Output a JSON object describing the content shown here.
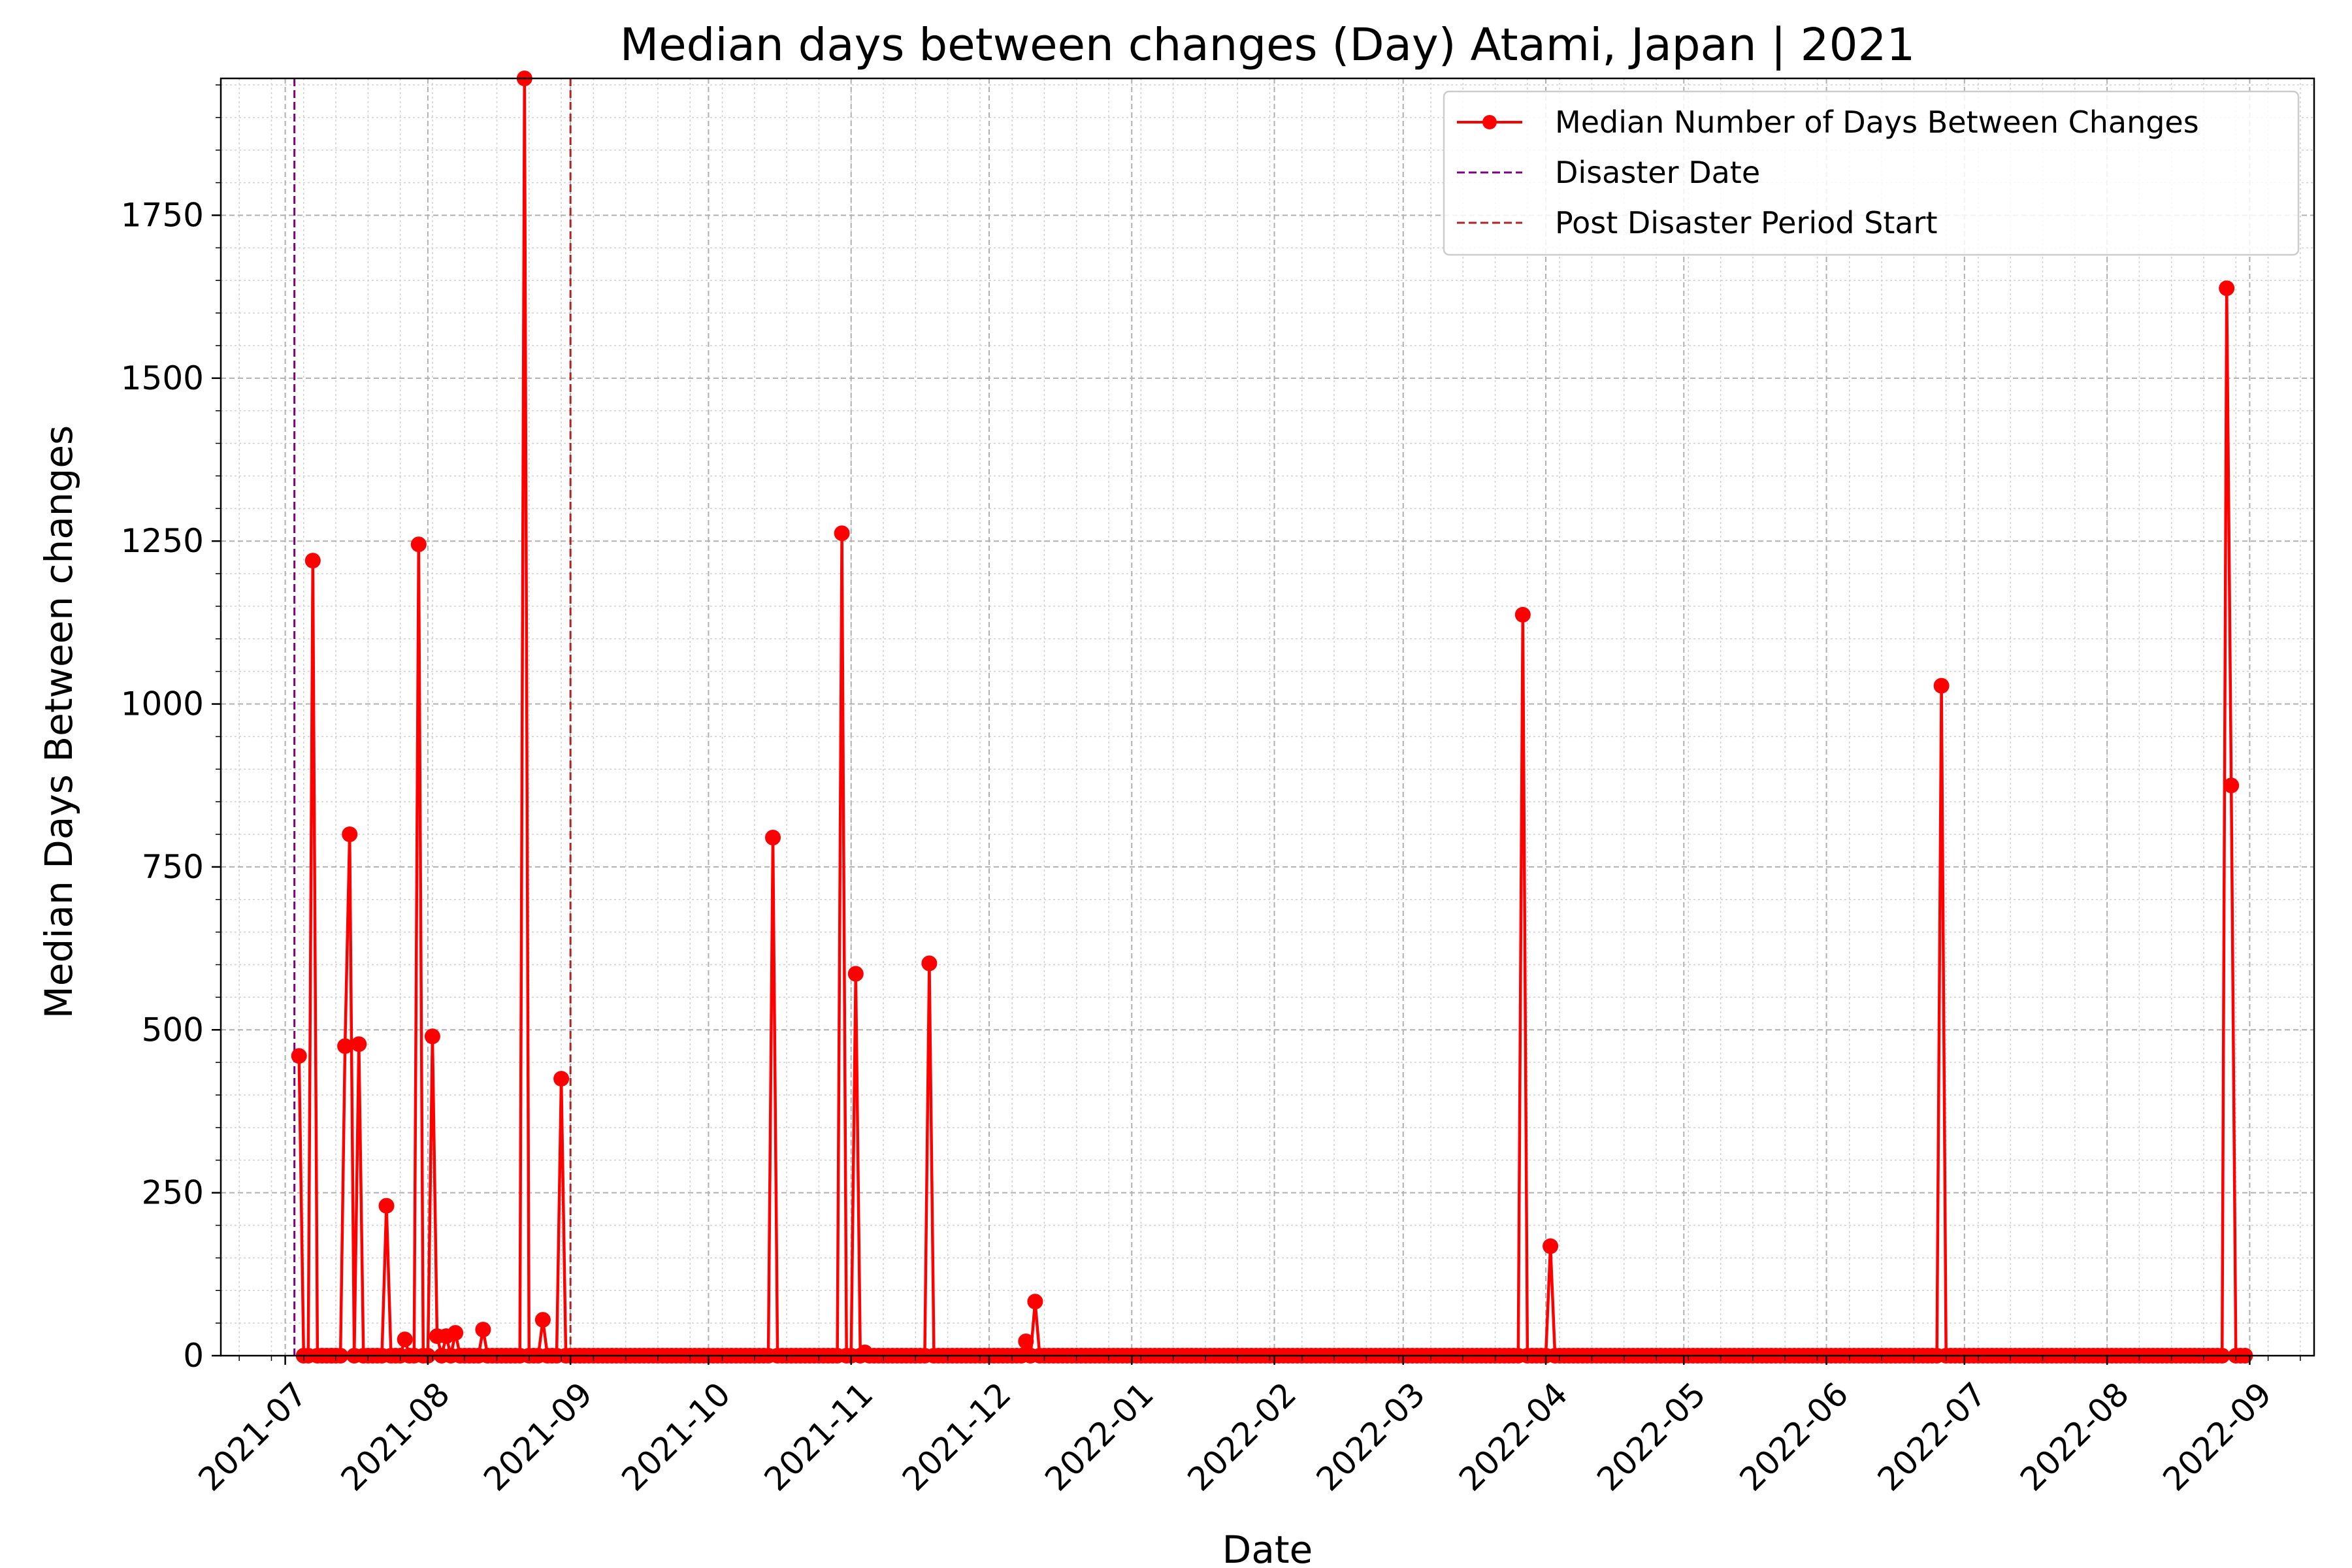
{
  "chart_data": {
    "type": "line",
    "title": "Median days between changes (Day) Atami, Japan | 2021",
    "xlabel": "Date",
    "ylabel": "Median Days Between changes",
    "xlim": [
      "2021-06-17",
      "2022-09-15"
    ],
    "ylim": [
      0,
      1960
    ],
    "y_ticks": [
      0,
      250,
      500,
      750,
      1000,
      1250,
      1500,
      1750
    ],
    "x_ticks": [
      "2021-07",
      "2021-08",
      "2021-09",
      "2021-10",
      "2021-11",
      "2021-12",
      "2022-01",
      "2022-02",
      "2022-03",
      "2022-04",
      "2022-05",
      "2022-06",
      "2022-07",
      "2022-08",
      "2022-09"
    ],
    "grid": true,
    "legend_position": "top-right",
    "colors": {
      "series": "#ff0000",
      "disaster": "#800080",
      "post": "#b22222"
    },
    "vlines": [
      {
        "name": "Disaster Date",
        "date": "2021-07-03",
        "color": "#800080"
      },
      {
        "name": "Post Disaster Period Start",
        "date": "2021-09-01",
        "color": "#b22222"
      }
    ],
    "series": [
      {
        "name": "Median Number of Days Between Changes",
        "color": "#ff0000",
        "points": [
          [
            "2021-07-04",
            460
          ],
          [
            "2021-07-05",
            0
          ],
          [
            "2021-07-06",
            0
          ],
          [
            "2021-07-07",
            1220
          ],
          [
            "2021-07-08",
            0
          ],
          [
            "2021-07-09",
            0
          ],
          [
            "2021-07-10",
            0
          ],
          [
            "2021-07-11",
            0
          ],
          [
            "2021-07-12",
            0
          ],
          [
            "2021-07-13",
            0
          ],
          [
            "2021-07-14",
            475
          ],
          [
            "2021-07-15",
            800
          ],
          [
            "2021-07-16",
            0
          ],
          [
            "2021-07-17",
            478
          ],
          [
            "2021-07-18",
            0
          ],
          [
            "2021-07-19",
            0
          ],
          [
            "2021-07-20",
            0
          ],
          [
            "2021-07-21",
            0
          ],
          [
            "2021-07-22",
            0
          ],
          [
            "2021-07-23",
            230
          ],
          [
            "2021-07-24",
            0
          ],
          [
            "2021-07-25",
            0
          ],
          [
            "2021-07-26",
            0
          ],
          [
            "2021-07-27",
            25
          ],
          [
            "2021-07-28",
            0
          ],
          [
            "2021-07-29",
            0
          ],
          [
            "2021-07-30",
            1245
          ],
          [
            "2021-07-31",
            0
          ],
          [
            "2021-08-01",
            0
          ],
          [
            "2021-08-02",
            490
          ],
          [
            "2021-08-03",
            30
          ],
          [
            "2021-08-04",
            0
          ],
          [
            "2021-08-05",
            30
          ],
          [
            "2021-08-06",
            0
          ],
          [
            "2021-08-07",
            35
          ],
          [
            "2021-08-08",
            0
          ],
          [
            "2021-08-09",
            0
          ],
          [
            "2021-08-10",
            0
          ],
          [
            "2021-08-11",
            0
          ],
          [
            "2021-08-12",
            0
          ],
          [
            "2021-08-13",
            40
          ],
          [
            "2021-08-14",
            0
          ],
          [
            "2021-08-15",
            0
          ],
          [
            "2021-08-16",
            0
          ],
          [
            "2021-08-17",
            0
          ],
          [
            "2021-08-18",
            0
          ],
          [
            "2021-08-19",
            0
          ],
          [
            "2021-08-20",
            0
          ],
          [
            "2021-08-21",
            0
          ],
          [
            "2021-08-22",
            1960
          ],
          [
            "2021-08-23",
            0
          ],
          [
            "2021-08-24",
            0
          ],
          [
            "2021-08-25",
            0
          ],
          [
            "2021-08-26",
            55
          ],
          [
            "2021-08-27",
            0
          ],
          [
            "2021-08-28",
            0
          ],
          [
            "2021-08-29",
            0
          ],
          [
            "2021-08-30",
            425
          ],
          [
            "2021-08-31",
            0
          ],
          [
            "2021-09-01",
            0
          ],
          [
            "2021-10-14",
            0
          ],
          [
            "2021-10-15",
            795
          ],
          [
            "2021-10-16",
            0
          ],
          [
            "2021-10-29",
            0
          ],
          [
            "2021-10-30",
            1262
          ],
          [
            "2021-10-31",
            0
          ],
          [
            "2021-11-01",
            0
          ],
          [
            "2021-11-02",
            586
          ],
          [
            "2021-11-03",
            0
          ],
          [
            "2021-11-04",
            5
          ],
          [
            "2021-11-05",
            0
          ],
          [
            "2021-11-17",
            0
          ],
          [
            "2021-11-18",
            602
          ],
          [
            "2021-11-19",
            0
          ],
          [
            "2021-12-08",
            0
          ],
          [
            "2021-12-09",
            22
          ],
          [
            "2021-12-10",
            0
          ],
          [
            "2021-12-11",
            83
          ],
          [
            "2021-12-12",
            0
          ],
          [
            "2022-03-26",
            0
          ],
          [
            "2022-03-27",
            1137
          ],
          [
            "2022-03-28",
            0
          ],
          [
            "2022-04-01",
            0
          ],
          [
            "2022-04-02",
            168
          ],
          [
            "2022-04-03",
            0
          ],
          [
            "2022-06-25",
            0
          ],
          [
            "2022-06-26",
            1028
          ],
          [
            "2022-06-27",
            0
          ],
          [
            "2022-08-26",
            0
          ],
          [
            "2022-08-27",
            1638
          ],
          [
            "2022-08-28",
            875
          ],
          [
            "2022-08-29",
            0
          ],
          [
            "2022-08-30",
            0
          ],
          [
            "2022-08-31",
            0
          ]
        ]
      }
    ]
  }
}
